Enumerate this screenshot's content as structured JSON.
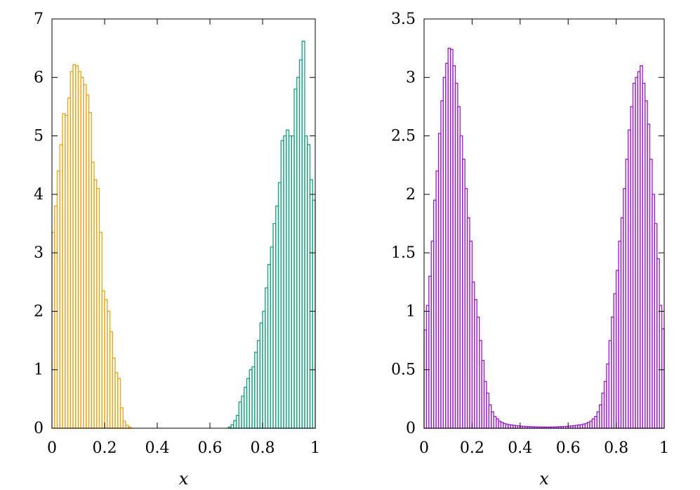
{
  "chart_data": [
    {
      "type": "histogram",
      "xlabel": "x",
      "ylabel": "",
      "xlim": [
        0,
        1
      ],
      "ylim": [
        0,
        7
      ],
      "xticks": [
        "0",
        "0.2",
        "0.4",
        "0.6",
        "0.8",
        "1"
      ],
      "yticks": [
        "0",
        "1",
        "2",
        "3",
        "4",
        "5",
        "6",
        "7"
      ],
      "bin_width": 0.01,
      "series": [
        {
          "color": "#e6a313",
          "x_start": 0.0,
          "values": [
            3.35,
            3.8,
            4.4,
            4.85,
            5.38,
            5.35,
            5.65,
            6.1,
            6.22,
            6.2,
            6.1,
            6.0,
            5.88,
            5.7,
            5.4,
            4.55,
            4.25,
            4.1,
            3.35,
            2.35,
            2.2,
            2.0,
            1.65,
            1.2,
            0.95,
            0.85,
            0.35,
            0.12,
            0.05,
            0.02
          ]
        },
        {
          "color": "#139e7e",
          "x_start": 0.67,
          "values": [
            0.02,
            0.06,
            0.13,
            0.22,
            0.45,
            0.55,
            0.7,
            0.85,
            1.0,
            1.05,
            1.3,
            1.5,
            1.8,
            2.0,
            2.4,
            2.8,
            3.1,
            3.5,
            3.8,
            4.2,
            4.92,
            5.0,
            5.1,
            5.0,
            5.0,
            5.8,
            6.0,
            6.3,
            6.62,
            5.0,
            4.85,
            4.25,
            3.9,
            3.88,
            3.2
          ]
        }
      ]
    },
    {
      "type": "histogram",
      "xlabel": "x",
      "ylabel": "",
      "xlim": [
        0,
        1
      ],
      "ylim": [
        0,
        3.5
      ],
      "xticks": [
        "0",
        "0.2",
        "0.4",
        "0.6",
        "0.8",
        "1"
      ],
      "yticks": [
        "0",
        "0.5",
        "1",
        "1.5",
        "2",
        "2.5",
        "3",
        "3.5"
      ],
      "bin_width": 0.01,
      "series": [
        {
          "color": "#9a17c9",
          "x_start": 0.0,
          "values": [
            0.84,
            1.05,
            1.3,
            1.6,
            1.95,
            2.2,
            2.52,
            2.8,
            3.0,
            3.12,
            3.25,
            3.24,
            3.1,
            2.95,
            2.75,
            2.5,
            2.3,
            2.05,
            1.8,
            1.6,
            1.25,
            1.1,
            0.95,
            0.75,
            0.58,
            0.4,
            0.3,
            0.2,
            0.14,
            0.1,
            0.08,
            0.06,
            0.05,
            0.04,
            0.035,
            0.03,
            0.028,
            0.025,
            0.022,
            0.02,
            0.018,
            0.016,
            0.015,
            0.014,
            0.013,
            0.012,
            0.012,
            0.011,
            0.011,
            0.01,
            0.01,
            0.01,
            0.01,
            0.011,
            0.011,
            0.012,
            0.013,
            0.014,
            0.015,
            0.016,
            0.018,
            0.02,
            0.022,
            0.025,
            0.028,
            0.03,
            0.035,
            0.04,
            0.05,
            0.06,
            0.08,
            0.1,
            0.14,
            0.2,
            0.3,
            0.4,
            0.55,
            0.75,
            0.95,
            1.15,
            1.35,
            1.6,
            1.8,
            2.05,
            2.3,
            2.55,
            2.75,
            2.95,
            3.0,
            3.05,
            3.1,
            2.95,
            2.8,
            2.6,
            2.3,
            2.0,
            1.75,
            1.45,
            1.05,
            0.85,
            0.55
          ]
        }
      ]
    }
  ]
}
